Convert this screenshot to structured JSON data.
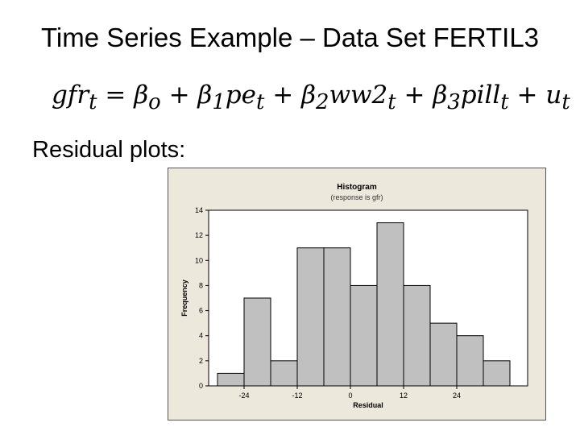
{
  "slide": {
    "title": "Time Series Example – Data Set FERTIL3",
    "equation": {
      "lhs": "gfr",
      "lhs_sub": "t",
      "terms": [
        {
          "coef": "β",
          "coef_sub": "o",
          "var": "",
          "var_sub": ""
        },
        {
          "coef": "β",
          "coef_sub": "1",
          "var": "pe",
          "var_sub": "t"
        },
        {
          "coef": "β",
          "coef_sub": "2",
          "var": "ww2",
          "var_sub": "t"
        },
        {
          "coef": "β",
          "coef_sub": "3",
          "var": "pill",
          "var_sub": "t"
        },
        {
          "coef": "",
          "coef_sub": "",
          "var": "u",
          "var_sub": "t"
        }
      ]
    },
    "section_label": "Residual plots:"
  },
  "chart_data": {
    "type": "bar",
    "title": "Histogram",
    "subtitle": "(response is gfr)",
    "xlabel": "Residual",
    "ylabel": "Frequency",
    "bin_width": 6,
    "bins_start": [
      -30,
      -24,
      -18,
      -12,
      -6,
      0,
      6,
      12,
      18,
      24,
      30
    ],
    "values": [
      1,
      7,
      2,
      11,
      11,
      8,
      13,
      8,
      5,
      4,
      2
    ],
    "xticks": [
      -24,
      -12,
      0,
      12,
      24
    ],
    "xtick_labels": [
      "-24",
      "-12",
      "0",
      "12",
      "24"
    ],
    "xlim": [
      -32,
      40
    ],
    "ylim": [
      0,
      14
    ],
    "yticks": [
      0,
      2,
      4,
      6,
      8,
      10,
      12,
      14
    ],
    "colors": {
      "bar": "#c0c0c0",
      "bar_edge": "#000000",
      "plot_bg": "#ffffff",
      "frame_bg": "#ece8dc"
    }
  }
}
